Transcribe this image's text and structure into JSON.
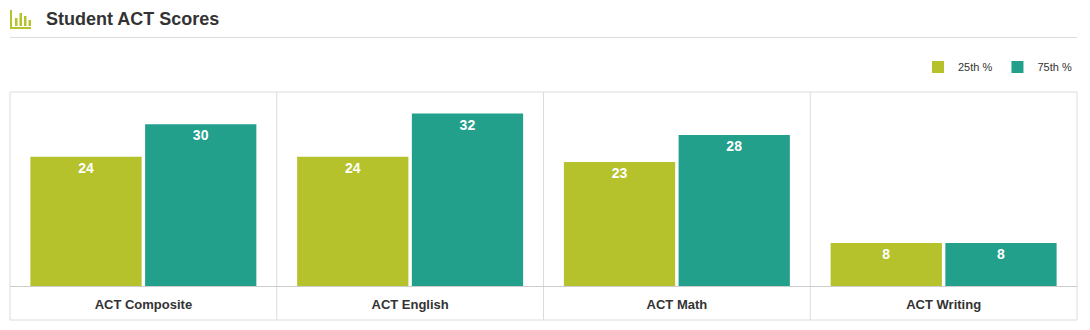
{
  "chart_data": {
    "type": "bar",
    "title": "Student ACT Scores",
    "categories": [
      "ACT Composite",
      "ACT English",
      "ACT Math",
      "ACT Writing"
    ],
    "series": [
      {
        "name": "25th %",
        "color": "#b5c22c",
        "values": [
          24,
          24,
          23,
          8
        ]
      },
      {
        "name": "75th %",
        "color": "#22a08c",
        "values": [
          30,
          32,
          28,
          8
        ]
      }
    ],
    "ylim": [
      0,
      36
    ],
    "grid": false,
    "legend": "top right",
    "data_labels": true,
    "tick_labels": "x"
  }
}
